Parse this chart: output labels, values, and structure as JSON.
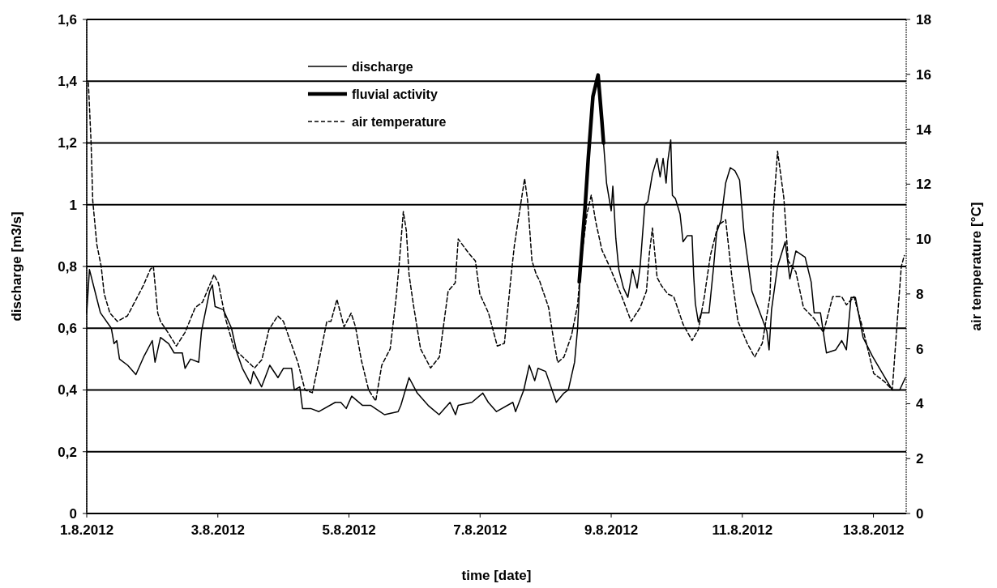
{
  "chart_data": {
    "type": "line",
    "xlabel": "time [date]",
    "ylabel": "discharge [m3/s]",
    "y2label": "air temperature [°C]",
    "xlim": [
      "2012-08-01T00:00",
      "2012-08-13T12:00"
    ],
    "xticks": [
      {
        "value": "2012-08-01",
        "label": "1.8.2012"
      },
      {
        "value": "2012-08-03",
        "label": "3.8.2012"
      },
      {
        "value": "2012-08-05",
        "label": "5.8.2012"
      },
      {
        "value": "2012-08-07",
        "label": "7.8.2012"
      },
      {
        "value": "2012-08-09",
        "label": "9.8.2012"
      },
      {
        "value": "2012-08-11",
        "label": "11.8.2012"
      },
      {
        "value": "2012-08-13",
        "label": "13.8.2012"
      }
    ],
    "ylim": [
      0,
      1.6
    ],
    "yticks": [
      0,
      {
        "value": 0.2,
        "label": "0,2"
      },
      {
        "value": 0.4,
        "label": "0,4"
      },
      {
        "value": 0.6,
        "label": "0,6"
      },
      {
        "value": 0.8,
        "label": "0,8"
      },
      1,
      {
        "value": 1.2,
        "label": "1,2"
      },
      {
        "value": 1.4,
        "label": "1,4"
      },
      {
        "value": 1.6,
        "label": "1,6"
      }
    ],
    "y2lim": [
      0,
      18
    ],
    "y2ticks": [
      0,
      2,
      4,
      6,
      8,
      10,
      12,
      14,
      16,
      18
    ],
    "grid": "y",
    "legend": "top left",
    "marker": "none",
    "series": [
      {
        "name": "discharge",
        "color": "#000000",
        "line_style": "solid",
        "x": [
          "2012-08-01T00:00",
          "2012-08-01T01:00",
          "2012-08-01T03:00",
          "2012-08-01T05:00",
          "2012-08-01T09:00",
          "2012-08-01T10:00",
          "2012-08-01T11:00",
          "2012-08-01T12:00",
          "2012-08-01T15:00",
          "2012-08-01T18:00",
          "2012-08-01T21:00",
          "2012-08-02T00:00",
          "2012-08-02T01:00",
          "2012-08-02T03:00",
          "2012-08-02T06:00",
          "2012-08-02T08:00",
          "2012-08-02T11:00",
          "2012-08-02T12:00",
          "2012-08-02T14:00",
          "2012-08-02T17:00",
          "2012-08-02T18:00",
          "2012-08-02T21:00",
          "2012-08-02T22:00",
          "2012-08-02T23:00",
          "2012-08-03T02:00",
          "2012-08-03T05:00",
          "2012-08-03T07:00",
          "2012-08-03T09:00",
          "2012-08-03T12:00",
          "2012-08-03T13:00",
          "2012-08-03T16:00",
          "2012-08-03T19:00",
          "2012-08-03T22:00",
          "2012-08-04T00:00",
          "2012-08-04T03:00",
          "2012-08-04T04:00",
          "2012-08-04T06:00",
          "2012-08-04T07:00",
          "2012-08-04T10:00",
          "2012-08-04T13:00",
          "2012-08-04T19:00",
          "2012-08-04T21:00",
          "2012-08-04T23:00",
          "2012-08-05T01:00",
          "2012-08-05T05:00",
          "2012-08-05T08:00",
          "2012-08-05T13:00",
          "2012-08-05T18:00",
          "2012-08-05T19:00",
          "2012-08-05T22:00",
          "2012-08-06T01:00",
          "2012-08-06T05:00",
          "2012-08-06T09:00",
          "2012-08-06T13:00",
          "2012-08-06T15:00",
          "2012-08-06T16:00",
          "2012-08-06T21:00",
          "2012-08-07T01:00",
          "2012-08-07T03:00",
          "2012-08-07T06:00",
          "2012-08-07T12:00",
          "2012-08-07T13:00",
          "2012-08-07T16:00",
          "2012-08-07T18:00",
          "2012-08-07T20:00",
          "2012-08-07T21:12",
          "2012-08-08T00:00",
          "2012-08-08T03:54",
          "2012-08-08T06:42",
          "2012-08-08T08:18",
          "2012-08-08T10:36",
          "2012-08-08T11:42",
          "2012-08-08T12:48",
          "2012-08-08T14:30",
          "2012-08-08T15:36",
          "2012-08-08T17:18",
          "2012-08-08T19:12",
          "2012-08-08T20:36",
          "2012-08-08T22:18",
          "2012-08-09T00:00",
          "2012-08-09T00:36",
          "2012-08-09T01:42",
          "2012-08-09T02:48",
          "2012-08-09T04:30",
          "2012-08-09T06:06",
          "2012-08-09T07:48",
          "2012-08-09T09:30",
          "2012-08-09T10:36",
          "2012-08-09T12:18",
          "2012-08-09T13:24",
          "2012-08-09T15:06",
          "2012-08-09T16:48",
          "2012-08-09T17:54",
          "2012-08-09T19:00",
          "2012-08-09T20:06",
          "2012-08-09T20:42",
          "2012-08-09T21:48",
          "2012-08-09T22:24",
          "2012-08-09T23:30",
          "2012-08-10T01:12",
          "2012-08-10T02:18",
          "2012-08-10T03:54",
          "2012-08-10T05:36",
          "2012-08-10T06:12",
          "2012-08-10T06:48",
          "2012-08-10T07:54",
          "2012-08-10T09:00",
          "2012-08-10T11:48",
          "2012-08-10T13:30",
          "2012-08-10T14:36",
          "2012-08-10T16:12",
          "2012-08-10T17:54",
          "2012-08-10T19:36",
          "2012-08-10T21:18",
          "2012-08-10T23:00",
          "2012-08-11T00:36",
          "2012-08-11T03:30",
          "2012-08-11T07:18",
          "2012-08-11T09:00",
          "2012-08-11T09:48",
          "2012-08-11T10:42",
          "2012-08-11T12:54",
          "2012-08-11T15:42",
          "2012-08-11T17:24",
          "2012-08-11T19:36",
          "2012-08-11T23:00",
          "2012-08-12T01:12",
          "2012-08-12T02:18",
          "2012-08-12T04:36",
          "2012-08-12T06:48",
          "2012-08-12T10:12",
          "2012-08-12T12:24",
          "2012-08-12T14:06",
          "2012-08-12T15:48",
          "2012-08-12T17:24",
          "2012-08-12T20:12",
          "2012-08-12T23:36",
          "2012-08-13T02:54",
          "2012-08-13T06:54",
          "2012-08-13T09:36",
          "2012-08-13T11:42"
        ],
        "values": [
          0.65,
          0.79,
          0.72,
          0.65,
          0.6,
          0.55,
          0.56,
          0.5,
          0.48,
          0.45,
          0.51,
          0.56,
          0.49,
          0.57,
          0.55,
          0.52,
          0.52,
          0.47,
          0.5,
          0.49,
          0.59,
          0.72,
          0.74,
          0.67,
          0.66,
          0.6,
          0.52,
          0.47,
          0.42,
          0.46,
          0.41,
          0.48,
          0.44,
          0.47,
          0.47,
          0.4,
          0.41,
          0.34,
          0.34,
          0.33,
          0.36,
          0.36,
          0.34,
          0.38,
          0.35,
          0.35,
          0.32,
          0.33,
          0.35,
          0.44,
          0.39,
          0.35,
          0.32,
          0.36,
          0.32,
          0.35,
          0.36,
          0.39,
          0.36,
          0.33,
          0.36,
          0.33,
          0.4,
          0.48,
          0.43,
          0.47,
          0.46,
          0.36,
          0.39,
          0.4,
          0.49,
          0.6,
          0.8,
          1.0,
          1.15,
          1.35,
          1.42,
          1.27,
          1.07,
          0.98,
          1.06,
          0.89,
          0.79,
          0.73,
          0.7,
          0.79,
          0.73,
          0.8,
          1.0,
          1.01,
          1.1,
          1.15,
          1.09,
          1.15,
          1.07,
          1.14,
          1.21,
          1.03,
          1.02,
          0.97,
          0.88,
          0.9,
          0.9,
          0.77,
          0.68,
          0.62,
          0.65,
          0.65,
          0.8,
          0.91,
          0.95,
          1.07,
          1.12,
          1.11,
          1.08,
          0.91,
          0.72,
          0.63,
          0.59,
          0.53,
          0.66,
          0.8,
          0.88,
          0.76,
          0.85,
          0.83,
          0.75,
          0.65,
          0.65,
          0.52,
          0.53,
          0.56,
          0.53,
          0.7,
          0.7,
          0.57,
          0.51,
          0.46,
          0.4,
          0.4,
          0.44
        ]
      },
      {
        "name": "fluvial activity",
        "color": "#000000",
        "line_style": "solid",
        "x": [
          "2012-08-08T12:18",
          "2012-08-08T14:30",
          "2012-08-08T15:36",
          "2012-08-08T17:18",
          "2012-08-08T19:12",
          "2012-08-08T20:36",
          "2012-08-08T21:12"
        ],
        "values": [
          0.75,
          1.0,
          1.15,
          1.35,
          1.42,
          1.27,
          1.2
        ]
      },
      {
        "name": "air temperature",
        "color": "#000000",
        "line_style": "dashed",
        "axis": "y2",
        "x": [
          "2012-08-01T00:36",
          "2012-08-01T01:36",
          "2012-08-01T02:12",
          "2012-08-01T03:42",
          "2012-08-01T05:18",
          "2012-08-01T06:24",
          "2012-08-01T08:30",
          "2012-08-01T11:12",
          "2012-08-01T14:54",
          "2012-08-01T18:36",
          "2012-08-01T20:42",
          "2012-08-01T23:18",
          "2012-08-02T00:24",
          "2012-08-02T02:00",
          "2012-08-02T03:00",
          "2012-08-02T05:42",
          "2012-08-02T08:48",
          "2012-08-02T12:00",
          "2012-08-02T15:42",
          "2012-08-02T18:24",
          "2012-08-02T22:36",
          "2012-08-03T00:12",
          "2012-08-03T02:48",
          "2012-08-03T06:00",
          "2012-08-03T13:24",
          "2012-08-03T16:06",
          "2012-08-03T18:42",
          "2012-08-03T21:54",
          "2012-08-04T00:00",
          "2012-08-04T02:06",
          "2012-08-04T05:18",
          "2012-08-04T07:54",
          "2012-08-04T10:36",
          "2012-08-04T12:42",
          "2012-08-04T15:54",
          "2012-08-04T17:24",
          "2012-08-04T19:36",
          "2012-08-04T22:12",
          "2012-08-05T00:48",
          "2012-08-05T02:24",
          "2012-08-05T04:30",
          "2012-08-05T07:12",
          "2012-08-05T09:48",
          "2012-08-05T12:00",
          "2012-08-05T15:06",
          "2012-08-05T17:18",
          "2012-08-05T18:18",
          "2012-08-05T19:54",
          "2012-08-05T21:00",
          "2012-08-05T22:00",
          "2012-08-05T23:36",
          "2012-08-06T02:12",
          "2012-08-06T05:54",
          "2012-08-06T09:06",
          "2012-08-06T12:18",
          "2012-08-06T14:54",
          "2012-08-06T16:00",
          "2012-08-06T19:42",
          "2012-08-06T22:18",
          "2012-08-06T23:54",
          "2012-08-07T03:06",
          "2012-08-07T06:18",
          "2012-08-07T08:54",
          "2012-08-07T11:36",
          "2012-08-07T12:36",
          "2012-08-07T16:18",
          "2012-08-07T17:24",
          "2012-08-07T19:00",
          "2012-08-07T20:36",
          "2012-08-07T21:42",
          "2012-08-08T01:06",
          "2012-08-08T02:48",
          "2012-08-08T04:24",
          "2012-08-08T06:42",
          "2012-08-08T09:30",
          "2012-08-08T11:42",
          "2012-08-08T12:48",
          "2012-08-08T15:06",
          "2012-08-08T16:42",
          "2012-08-08T18:24",
          "2012-08-08T20:36",
          "2012-08-08T23:24",
          "2012-08-09T03:54",
          "2012-08-09T07:18",
          "2012-08-09T10:36",
          "2012-08-09T12:54",
          "2012-08-09T14:00",
          "2012-08-09T15:06",
          "2012-08-09T16:48",
          "2012-08-09T18:24",
          "2012-08-09T20:42",
          "2012-08-09T22:54",
          "2012-08-10T02:18",
          "2012-08-10T05:36",
          "2012-08-10T07:54",
          "2012-08-10T10:06",
          "2012-08-10T12:18",
          "2012-08-10T15:06",
          "2012-08-10T17:54",
          "2012-08-10T20:12",
          "2012-08-10T22:24",
          "2012-08-11T01:48",
          "2012-08-11T04:30",
          "2012-08-11T07:18",
          "2012-08-11T10:06",
          "2012-08-11T11:18",
          "2012-08-11T12:54",
          "2012-08-11T15:12",
          "2012-08-11T16:48",
          "2012-08-11T19:36",
          "2012-08-11T22:24",
          "2012-08-12T02:18",
          "2012-08-12T05:42",
          "2012-08-12T09:06",
          "2012-08-12T12:24",
          "2012-08-12T14:06",
          "2012-08-12T16:54",
          "2012-08-12T20:12",
          "2012-08-13T00:06",
          "2012-08-13T04:06",
          "2012-08-13T06:54",
          "2012-08-13T08:30",
          "2012-08-13T10:12",
          "2012-08-13T11:18"
        ],
        "values": [
          15.7,
          13.5,
          11.4,
          9.8,
          9.0,
          8.0,
          7.3,
          7.0,
          7.2,
          7.9,
          8.3,
          8.9,
          9.0,
          7.3,
          7.0,
          6.6,
          6.1,
          6.6,
          7.5,
          7.7,
          8.7,
          8.4,
          7.1,
          6.0,
          5.3,
          5.6,
          6.7,
          7.2,
          7.0,
          6.4,
          5.5,
          4.5,
          4.4,
          5.4,
          7.0,
          7.0,
          7.8,
          6.8,
          7.3,
          6.8,
          5.6,
          4.5,
          4.1,
          5.4,
          6.0,
          7.9,
          9.0,
          11.0,
          10.3,
          8.7,
          7.6,
          6.0,
          5.3,
          5.7,
          8.1,
          8.4,
          10.0,
          9.5,
          9.2,
          8.0,
          7.3,
          6.1,
          6.2,
          8.9,
          9.8,
          12.2,
          11.4,
          9.2,
          8.7,
          8.5,
          7.5,
          6.4,
          5.5,
          5.7,
          6.5,
          7.6,
          9.0,
          10.9,
          11.6,
          10.6,
          9.6,
          9.0,
          7.9,
          7.0,
          7.5,
          8.1,
          9.5,
          10.4,
          8.6,
          8.3,
          8.0,
          7.9,
          6.9,
          6.3,
          6.7,
          7.9,
          9.4,
          10.5,
          10.7,
          8.6,
          7.0,
          6.2,
          5.7,
          6.2,
          7.9,
          10.9,
          13.2,
          11.5,
          9.2,
          8.8,
          7.5,
          7.1,
          6.6,
          7.9,
          7.9,
          7.6,
          7.9,
          6.7,
          5.1,
          4.8,
          4.5,
          6.7,
          9.0,
          9.4
        ]
      }
    ]
  }
}
